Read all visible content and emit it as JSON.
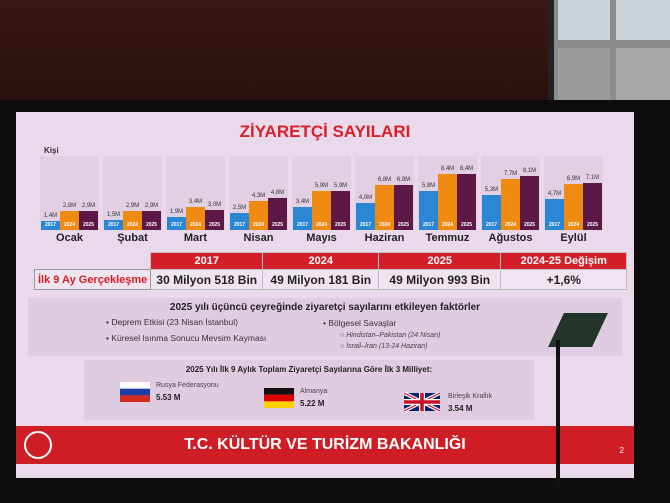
{
  "slide": {
    "title": "ZİYARETÇİ SAYILARI",
    "footer": "T.C. KÜLTÜR VE TURİZM BAKANLIĞI",
    "page_number": "2",
    "colors": {
      "accent": "#d41f2a",
      "y2017": "#2b86d4",
      "y2024": "#ef8a12",
      "y2025": "#5e1847"
    }
  },
  "chart_data": {
    "type": "bar",
    "ylabel": "Kişi",
    "categories": [
      "Ocak",
      "Şubat",
      "Mart",
      "Nisan",
      "Mayıs",
      "Haziran",
      "Temmuz",
      "Ağustos",
      "Eylül"
    ],
    "series": [
      {
        "name": "2017",
        "values": [
          1.4,
          1.5,
          1.9,
          2.5,
          3.4,
          4.0,
          5.8,
          5.3,
          4.7
        ],
        "labels": [
          "1,4M",
          "1,5M",
          "1,9M",
          "2,5M",
          "3,4M",
          "4,0M",
          "5,8M",
          "5,3M",
          "4,7M"
        ]
      },
      {
        "name": "2024",
        "values": [
          2.8,
          2.9,
          3.4,
          4.3,
          5.9,
          6.8,
          8.4,
          7.7,
          6.9
        ],
        "labels": [
          "2,8M",
          "2,9M",
          "3,4M",
          "4,3M",
          "5,9M",
          "6,8M",
          "8,4M",
          "7,7M",
          "6,9M"
        ]
      },
      {
        "name": "2025",
        "values": [
          2.9,
          2.9,
          3.0,
          4.8,
          5.9,
          6.8,
          8.4,
          8.1,
          7.1
        ],
        "labels": [
          "2,9M",
          "2,9M",
          "3,0M",
          "4,8M",
          "5,9M",
          "6,8M",
          "8,4M",
          "8,1M",
          "7,1M"
        ]
      }
    ]
  },
  "table": {
    "row_label": "İlk 9 Ay Gerçekleşme",
    "headers": [
      "2017",
      "2024",
      "2025",
      "2024-25 Değişim"
    ],
    "values": [
      "30 Milyon 518 Bin",
      "49 Milyon 181 Bin",
      "49 Milyon 993 Bin",
      "+1,6%"
    ]
  },
  "factors": {
    "heading": "2025 yılı üçüncü çeyreğinde ziyaretçi sayılarını etkileyen faktörler",
    "left": [
      "Deprem Etkisi (23 Nisan İstanbul)",
      "Küresel Isınma Sonucu Mevsim Kayması"
    ],
    "right": "Bölgesel Savaşlar",
    "right_sub": [
      "Hindistan–Pakistan (24 Nisan)",
      "İsrail–İran (13-24 Haziran)"
    ]
  },
  "nationalities": {
    "heading": "2025 Yılı İlk 9 Aylık Toplam Ziyaretçi Sayılarına Göre İlk 3 Milliyet:",
    "items": [
      {
        "name": "Rusya Federasyonu",
        "value": "5.53 M",
        "flag": "russia-flag"
      },
      {
        "name": "Almanya",
        "value": "5.22 M",
        "flag": "germany-flag"
      },
      {
        "name": "Birleşik Krallık",
        "value": "3.54 M",
        "flag": "uk-flag"
      }
    ]
  }
}
